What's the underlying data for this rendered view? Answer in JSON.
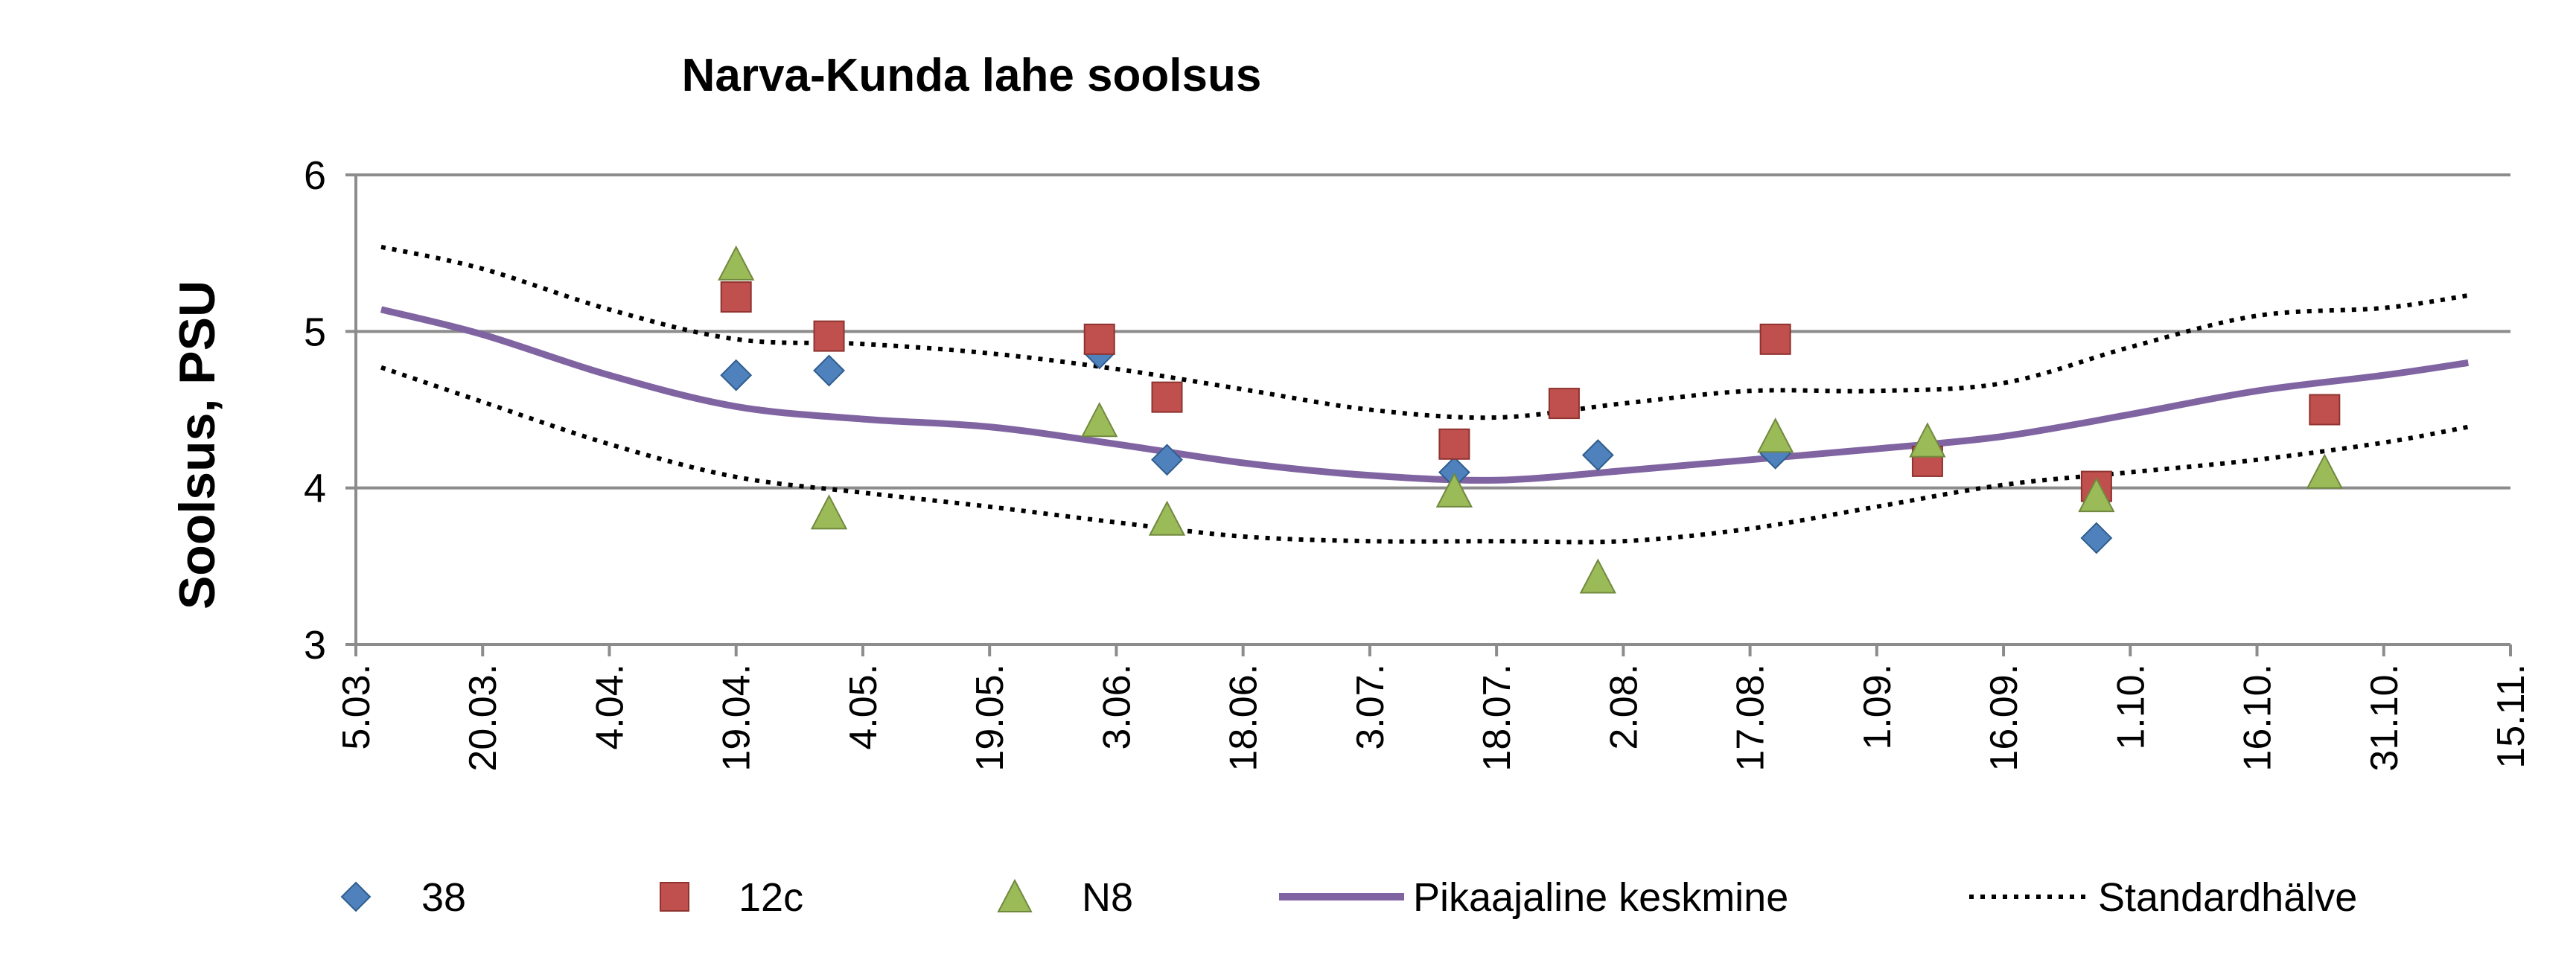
{
  "chart_data": {
    "type": "scatter",
    "title": "Narva-Kunda lahe soolsus",
    "xlabel": "",
    "ylabel": "Soolsus, PSU",
    "ylim": [
      3,
      6
    ],
    "yticks": [
      "3",
      "4",
      "5",
      "6"
    ],
    "xlim": [
      "2014-03-05",
      "2014-11-15"
    ],
    "xticks": [
      "2014-03-05",
      "2014-03-20",
      "2014-04-04",
      "2014-04-19",
      "2014-05-04",
      "2014-05-19",
      "2014-06-03",
      "2014-06-18",
      "2014-07-03",
      "2014-07-18",
      "2014-08-02",
      "2014-08-17",
      "2014-09-01",
      "2014-09-16",
      "2014-10-01",
      "2014-10-16",
      "2014-10-31",
      "2014-11-15"
    ],
    "xtick_labels": [
      "5.03.",
      "20.03.",
      "4.04.",
      "19.04.",
      "4.05.",
      "19.05.",
      "3.06.",
      "18.06.",
      "3.07.",
      "18.07.",
      "2.08.",
      "17.08.",
      "1.09.",
      "16.09.",
      "1.10.",
      "16.10.",
      "31.10.",
      "15.11."
    ],
    "grid": "horizontal",
    "legend_position": "bottom",
    "series": [
      {
        "name": "38",
        "kind": "marker",
        "marker": "diamond",
        "color": "#4F81BD",
        "points": [
          [
            "2014-04-19",
            4.72
          ],
          [
            "2014-04-30",
            4.75
          ],
          [
            "2014-06-01",
            4.86
          ],
          [
            "2014-06-09",
            4.18
          ],
          [
            "2014-07-13",
            4.1
          ],
          [
            "2014-07-30",
            4.21
          ],
          [
            "2014-08-20",
            4.22
          ],
          [
            "2014-09-07",
            4.18
          ],
          [
            "2014-09-27",
            3.68
          ]
        ]
      },
      {
        "name": "12c",
        "kind": "marker",
        "marker": "square",
        "color": "#C0504D",
        "points": [
          [
            "2014-04-19",
            5.22
          ],
          [
            "2014-04-30",
            4.97
          ],
          [
            "2014-06-01",
            4.95
          ],
          [
            "2014-06-09",
            4.58
          ],
          [
            "2014-07-13",
            4.28
          ],
          [
            "2014-07-26",
            4.54
          ],
          [
            "2014-08-20",
            4.95
          ],
          [
            "2014-09-07",
            4.17
          ],
          [
            "2014-09-27",
            4.01
          ],
          [
            "2014-10-24",
            4.5
          ]
        ]
      },
      {
        "name": "N8",
        "kind": "marker",
        "marker": "triangle",
        "color": "#9BBB59",
        "points": [
          [
            "2014-04-19",
            5.43
          ],
          [
            "2014-04-30",
            3.84
          ],
          [
            "2014-06-01",
            4.43
          ],
          [
            "2014-06-09",
            3.8
          ],
          [
            "2014-07-13",
            3.98
          ],
          [
            "2014-07-30",
            3.43
          ],
          [
            "2014-08-20",
            4.33
          ],
          [
            "2014-09-07",
            4.3
          ],
          [
            "2014-09-27",
            3.95
          ],
          [
            "2014-10-24",
            4.1
          ]
        ]
      },
      {
        "name": "Pikaajaline keskmine",
        "kind": "line",
        "style": "solid",
        "color": "#8064A2",
        "points": [
          [
            "2014-03-08",
            5.14
          ],
          [
            "2014-03-20",
            4.98
          ],
          [
            "2014-04-04",
            4.72
          ],
          [
            "2014-04-19",
            4.52
          ],
          [
            "2014-05-04",
            4.44
          ],
          [
            "2014-05-19",
            4.39
          ],
          [
            "2014-06-03",
            4.28
          ],
          [
            "2014-06-18",
            4.16
          ],
          [
            "2014-07-03",
            4.08
          ],
          [
            "2014-07-18",
            4.05
          ],
          [
            "2014-08-02",
            4.11
          ],
          [
            "2014-08-17",
            4.18
          ],
          [
            "2014-09-01",
            4.25
          ],
          [
            "2014-09-16",
            4.33
          ],
          [
            "2014-10-01",
            4.47
          ],
          [
            "2014-10-16",
            4.62
          ],
          [
            "2014-10-31",
            4.72
          ],
          [
            "2014-11-10",
            4.8
          ]
        ]
      },
      {
        "name": "Standardhälve",
        "kind": "line",
        "style": "dotted",
        "color": "#000000",
        "points": [
          [
            "2014-03-08",
            5.54
          ],
          [
            "2014-03-20",
            5.4
          ],
          [
            "2014-04-04",
            5.14
          ],
          [
            "2014-04-19",
            4.95
          ],
          [
            "2014-05-04",
            4.92
          ],
          [
            "2014-05-19",
            4.86
          ],
          [
            "2014-06-03",
            4.76
          ],
          [
            "2014-06-18",
            4.63
          ],
          [
            "2014-07-03",
            4.5
          ],
          [
            "2014-07-18",
            4.45
          ],
          [
            "2014-08-02",
            4.54
          ],
          [
            "2014-08-17",
            4.62
          ],
          [
            "2014-09-01",
            4.62
          ],
          [
            "2014-09-16",
            4.67
          ],
          [
            "2014-10-01",
            4.9
          ],
          [
            "2014-10-16",
            5.1
          ],
          [
            "2014-10-31",
            5.15
          ],
          [
            "2014-11-10",
            5.23
          ]
        ]
      },
      {
        "name": "Standardhälve (lower)",
        "kind": "line",
        "style": "dotted",
        "color": "#000000",
        "legend": false,
        "points": [
          [
            "2014-03-08",
            4.77
          ],
          [
            "2014-03-20",
            4.55
          ],
          [
            "2014-04-04",
            4.28
          ],
          [
            "2014-04-19",
            4.07
          ],
          [
            "2014-05-04",
            3.97
          ],
          [
            "2014-05-19",
            3.88
          ],
          [
            "2014-06-03",
            3.78
          ],
          [
            "2014-06-18",
            3.69
          ],
          [
            "2014-07-03",
            3.66
          ],
          [
            "2014-07-18",
            3.66
          ],
          [
            "2014-08-02",
            3.66
          ],
          [
            "2014-08-17",
            3.74
          ],
          [
            "2014-09-01",
            3.88
          ],
          [
            "2014-09-16",
            4.02
          ],
          [
            "2014-10-01",
            4.1
          ],
          [
            "2014-10-16",
            4.18
          ],
          [
            "2014-10-31",
            4.29
          ],
          [
            "2014-11-10",
            4.39
          ]
        ]
      }
    ],
    "legend": [
      {
        "label": "38",
        "marker": "diamond",
        "color": "#4F81BD"
      },
      {
        "label": "12c",
        "marker": "square",
        "color": "#C0504D"
      },
      {
        "label": "N8",
        "marker": "triangle",
        "color": "#9BBB59"
      },
      {
        "label": "Pikaajaline keskmine",
        "marker": "solid-line",
        "color": "#8064A2"
      },
      {
        "label": "Standardhälve",
        "marker": "dotted-line",
        "color": "#000000"
      }
    ]
  }
}
